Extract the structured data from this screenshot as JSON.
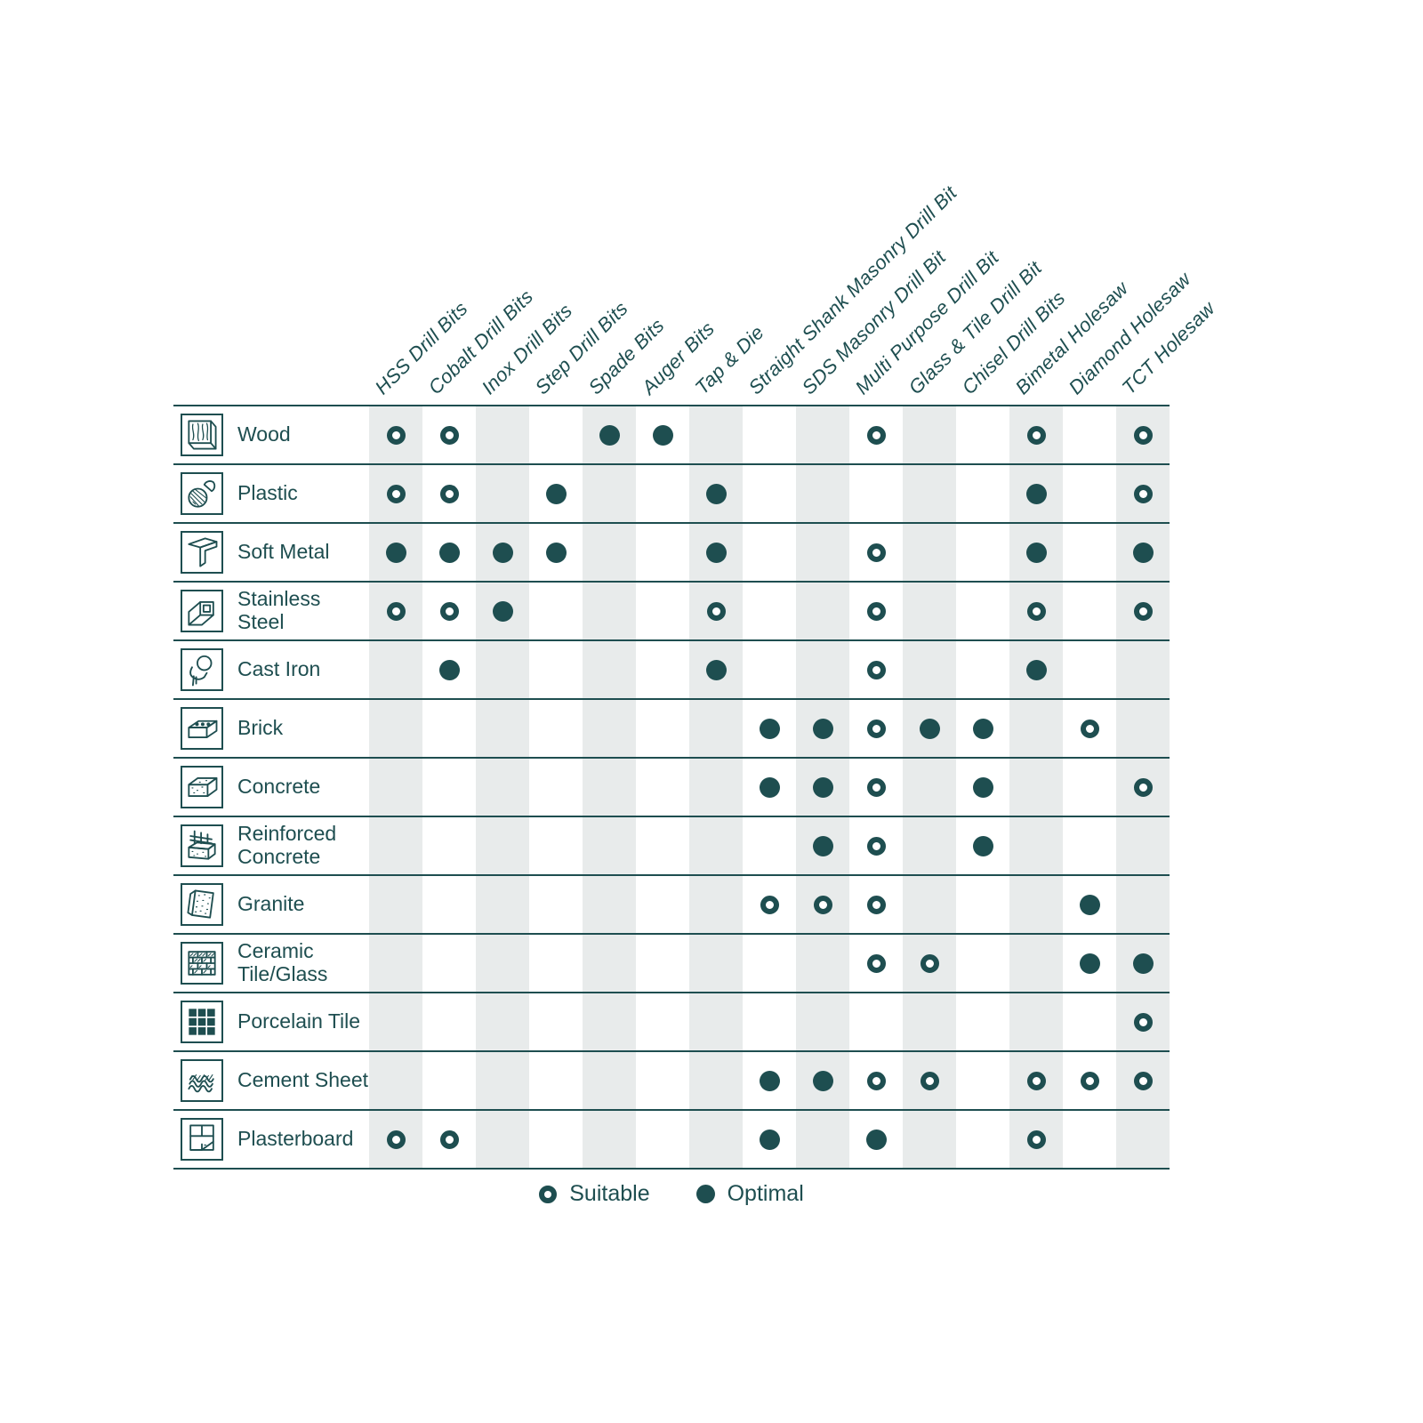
{
  "chart_data": {
    "type": "table",
    "description": "Drill bit / accessory to material compatibility matrix",
    "legend_position": "bottom-center",
    "cell_states": {
      "S": "suitable",
      "O": "optimal",
      "": "not-recommended"
    },
    "columns": [
      "HSS Drill Bits",
      "Cobalt Drill Bits",
      "Inox Drill Bits",
      "Step Drill Bits",
      "Spade Bits",
      "Auger Bits",
      "Tap & Die",
      "Straight Shank Masonry Drill Bit",
      "SDS Masonry Drill Bit",
      "Multi Purpose Drill Bit",
      "Glass & Tile Drill Bit",
      "Chisel Drill Bits",
      "Bimetal Holesaw",
      "Diamond Holesaw",
      "TCT Holesaw"
    ],
    "rows": [
      {
        "label": "Wood",
        "icon": "wood-icon",
        "cells": [
          "S",
          "S",
          "",
          "",
          "O",
          "O",
          "",
          "",
          "",
          "S",
          "",
          "",
          "S",
          "",
          "S"
        ]
      },
      {
        "label": "Plastic",
        "icon": "plastic-icon",
        "cells": [
          "S",
          "S",
          "",
          "O",
          "",
          "",
          "O",
          "",
          "",
          "",
          "",
          "",
          "O",
          "",
          "S"
        ]
      },
      {
        "label": "Soft Metal",
        "icon": "soft-metal-icon",
        "cells": [
          "O",
          "O",
          "O",
          "O",
          "",
          "",
          "O",
          "",
          "",
          "S",
          "",
          "",
          "O",
          "",
          "O"
        ]
      },
      {
        "label": "Stainless Steel",
        "icon": "stainless-steel-icon",
        "cells": [
          "S",
          "S",
          "O",
          "",
          "",
          "",
          "S",
          "",
          "",
          "S",
          "",
          "",
          "S",
          "",
          "S"
        ]
      },
      {
        "label": "Cast Iron",
        "icon": "cast-iron-icon",
        "cells": [
          "",
          "O",
          "",
          "",
          "",
          "",
          "O",
          "",
          "",
          "S",
          "",
          "",
          "O",
          "",
          ""
        ]
      },
      {
        "label": "Brick",
        "icon": "brick-icon",
        "cells": [
          "",
          "",
          "",
          "",
          "",
          "",
          "",
          "O",
          "O",
          "S",
          "O",
          "O",
          "",
          "S",
          ""
        ]
      },
      {
        "label": "Concrete",
        "icon": "concrete-icon",
        "cells": [
          "",
          "",
          "",
          "",
          "",
          "",
          "",
          "O",
          "O",
          "S",
          "",
          "O",
          "",
          "",
          "S"
        ]
      },
      {
        "label": "Reinforced Concrete",
        "icon": "reinforced-concrete-icon",
        "cells": [
          "",
          "",
          "",
          "",
          "",
          "",
          "",
          "",
          "O",
          "S",
          "",
          "O",
          "",
          "",
          ""
        ]
      },
      {
        "label": "Granite",
        "icon": "granite-icon",
        "cells": [
          "",
          "",
          "",
          "",
          "",
          "",
          "",
          "S",
          "S",
          "S",
          "",
          "",
          "",
          "O",
          ""
        ]
      },
      {
        "label": "Ceramic Tile/Glass",
        "icon": "ceramic-tile-glass-icon",
        "cells": [
          "",
          "",
          "",
          "",
          "",
          "",
          "",
          "",
          "",
          "S",
          "S",
          "",
          "",
          "O",
          "O"
        ]
      },
      {
        "label": "Porcelain Tile",
        "icon": "porcelain-tile-icon",
        "cells": [
          "",
          "",
          "",
          "",
          "",
          "",
          "",
          "",
          "",
          "",
          "",
          "",
          "",
          "",
          "S"
        ]
      },
      {
        "label": "Cement Sheet",
        "icon": "cement-sheet-icon",
        "cells": [
          "",
          "",
          "",
          "",
          "",
          "",
          "",
          "O",
          "O",
          "S",
          "S",
          "",
          "S",
          "S",
          "S"
        ]
      },
      {
        "label": "Plasterboard",
        "icon": "plasterboard-icon",
        "cells": [
          "S",
          "S",
          "",
          "",
          "",
          "",
          "",
          "O",
          "",
          "O",
          "",
          "",
          "S",
          "",
          ""
        ]
      }
    ],
    "legend": {
      "suitable": "Suitable",
      "optimal": "Optimal"
    }
  },
  "colors": {
    "accent_teal": "#1E4E50",
    "stripe_gray": "#E8EBEB",
    "background": "#FFFFFF"
  }
}
